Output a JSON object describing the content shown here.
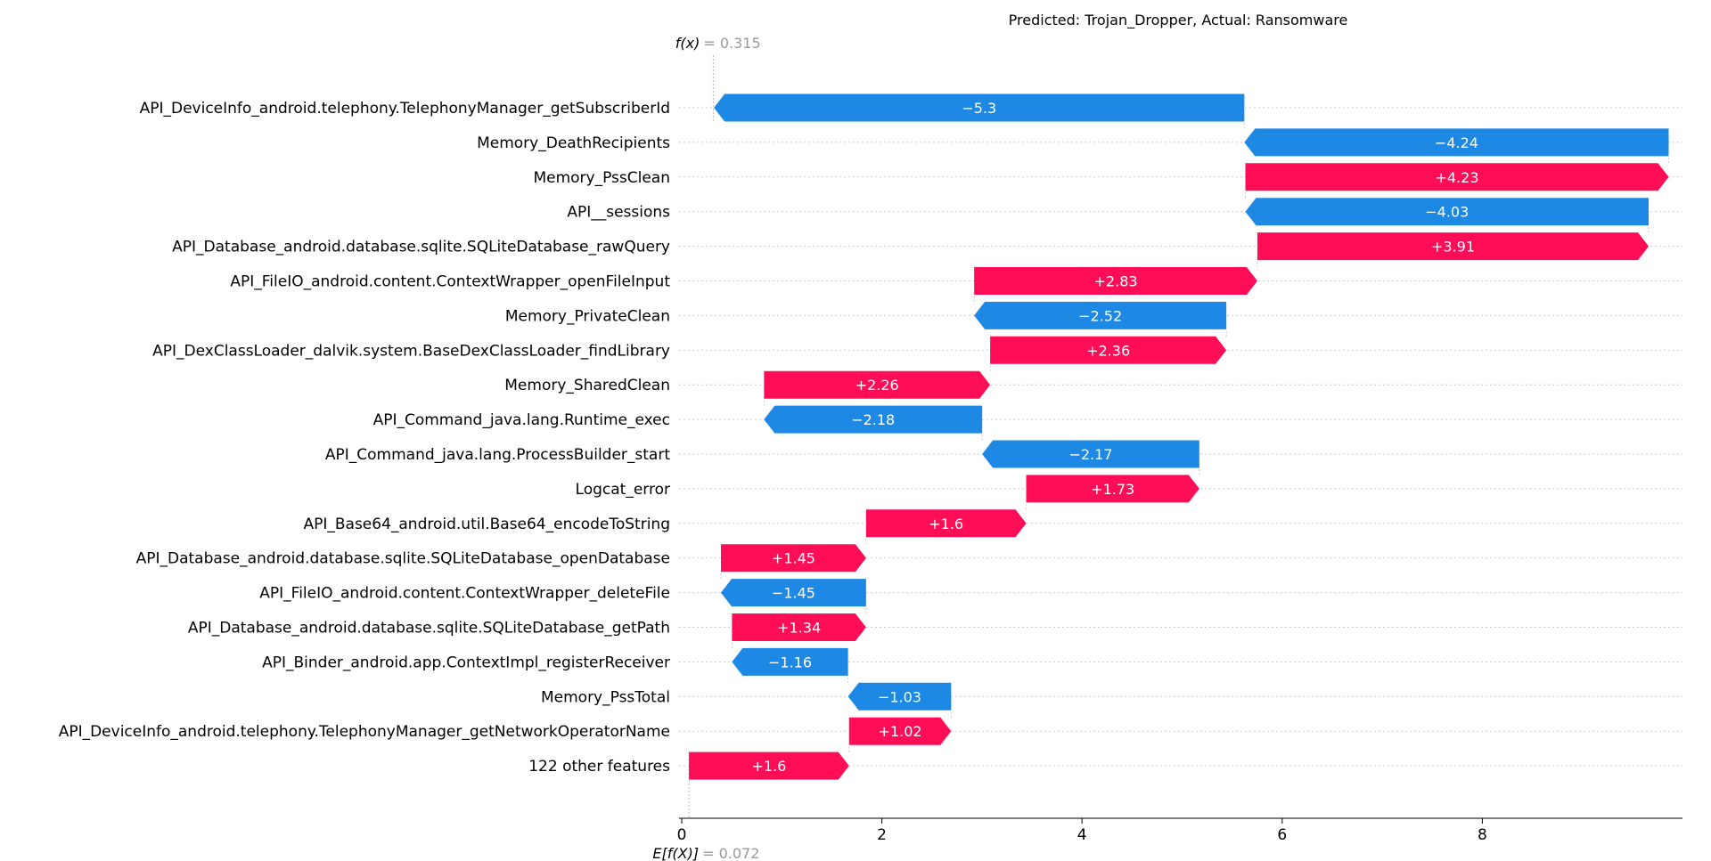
{
  "chart_data": {
    "type": "bar",
    "title": "Predicted: Trojan_Dropper, Actual: Ransomware",
    "fx_label": "f(x)",
    "fx_value": "= 0.315",
    "efx_label": "E[f(X)]",
    "efx_value": "= 0.072",
    "base_value": 0.072,
    "output_value": 0.315,
    "xlim": [
      -0.1,
      9.9
    ],
    "xticks": [
      0,
      2,
      4,
      6,
      8
    ],
    "xtick_labels": [
      "0",
      "2",
      "4",
      "6",
      "8"
    ],
    "features": [
      {
        "name": "API_DeviceInfo_android.telephony.TelephonyManager_getSubscriberId",
        "value": -5.3,
        "label": "−5.3"
      },
      {
        "name": "Memory_DeathRecipients",
        "value": -4.24,
        "label": "−4.24"
      },
      {
        "name": "Memory_PssClean",
        "value": 4.23,
        "label": "+4.23"
      },
      {
        "name": "API__sessions",
        "value": -4.03,
        "label": "−4.03"
      },
      {
        "name": "API_Database_android.database.sqlite.SQLiteDatabase_rawQuery",
        "value": 3.91,
        "label": "+3.91"
      },
      {
        "name": "API_FileIO_android.content.ContextWrapper_openFileInput",
        "value": 2.83,
        "label": "+2.83"
      },
      {
        "name": "Memory_PrivateClean",
        "value": -2.52,
        "label": "−2.52"
      },
      {
        "name": "API_DexClassLoader_dalvik.system.BaseDexClassLoader_findLibrary",
        "value": 2.36,
        "label": "+2.36"
      },
      {
        "name": "Memory_SharedClean",
        "value": 2.26,
        "label": "+2.26"
      },
      {
        "name": "API_Command_java.lang.Runtime_exec",
        "value": -2.18,
        "label": "−2.18"
      },
      {
        "name": "API_Command_java.lang.ProcessBuilder_start",
        "value": -2.17,
        "label": "−2.17"
      },
      {
        "name": "Logcat_error",
        "value": 1.73,
        "label": "+1.73"
      },
      {
        "name": "API_Base64_android.util.Base64_encodeToString",
        "value": 1.6,
        "label": "+1.6"
      },
      {
        "name": "API_Database_android.database.sqlite.SQLiteDatabase_openDatabase",
        "value": 1.45,
        "label": "+1.45"
      },
      {
        "name": "API_FileIO_android.content.ContextWrapper_deleteFile",
        "value": -1.45,
        "label": "−1.45"
      },
      {
        "name": "API_Database_android.database.sqlite.SQLiteDatabase_getPath",
        "value": 1.34,
        "label": "+1.34"
      },
      {
        "name": "API_Binder_android.app.ContextImpl_registerReceiver",
        "value": -1.16,
        "label": "−1.16"
      },
      {
        "name": "Memory_PssTotal",
        "value": -1.03,
        "label": "−1.03"
      },
      {
        "name": "API_DeviceInfo_android.telephony.TelephonyManager_getNetworkOperatorName",
        "value": 1.02,
        "label": "+1.02"
      },
      {
        "name": "122 other features",
        "value": 1.6,
        "label": "+1.6"
      }
    ],
    "colors": {
      "positive": "#ff0d57",
      "negative": "#1e88e5",
      "gridline": "#cccccc",
      "refline": "#bbbbbb",
      "annotation_gray": "#999999"
    }
  }
}
